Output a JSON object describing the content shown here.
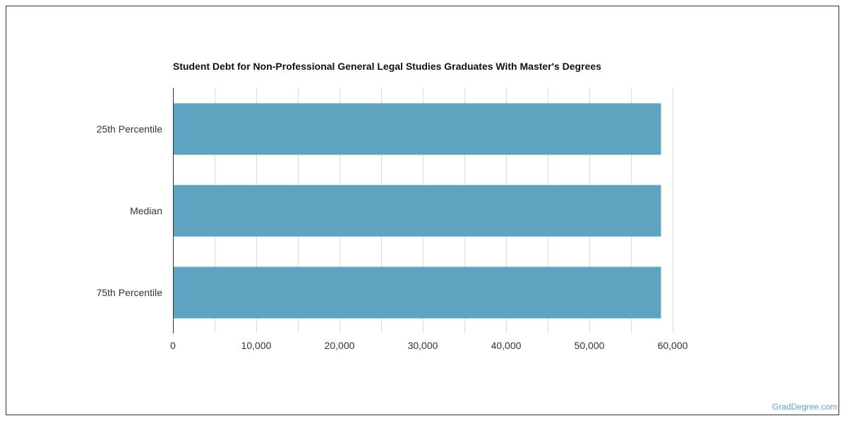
{
  "chart_data": {
    "type": "bar",
    "orientation": "horizontal",
    "title": "Student Debt for Non-Professional General Legal Studies Graduates With Master's Degrees",
    "categories": [
      "25th Percentile",
      "Median",
      "75th Percentile"
    ],
    "values": [
      58600,
      58600,
      58600
    ],
    "xlim": [
      0,
      60000
    ],
    "x_ticks": [
      0,
      10000,
      20000,
      30000,
      40000,
      50000,
      60000
    ],
    "x_tick_labels": [
      "0",
      "10,000",
      "20,000",
      "30,000",
      "40,000",
      "50,000",
      "60,000"
    ],
    "grid": true,
    "legend": "none",
    "bar_color": "#5ea3c0",
    "xlabel": "",
    "ylabel": ""
  },
  "watermark": "GradDegree.com",
  "colors": {
    "grid": "#dddddd",
    "axis": "#333333"
  }
}
